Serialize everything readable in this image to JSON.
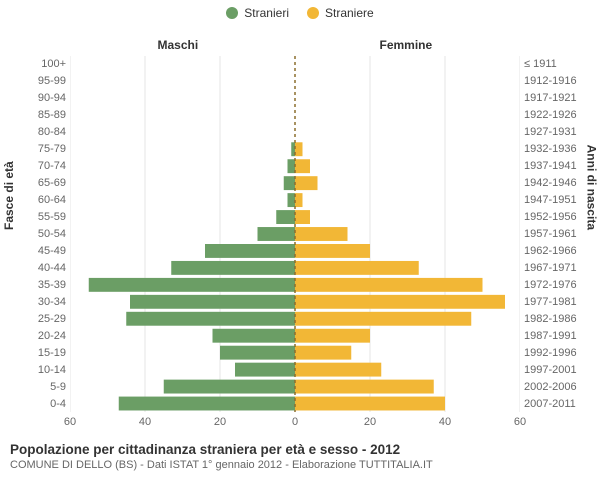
{
  "legend": {
    "male": "Stranieri",
    "female": "Straniere"
  },
  "columns": {
    "male": "Maschi",
    "female": "Femmine"
  },
  "axis_titles": {
    "left": "Fasce di età",
    "right": "Anni di nascita"
  },
  "footer": {
    "title": "Popolazione per cittadinanza straniera per età e sesso - 2012",
    "subtitle": "COMUNE DI DELLO (BS) - Dati ISTAT 1° gennaio 2012 - Elaborazione TUTTITALIA.IT"
  },
  "chart": {
    "type": "population-pyramid",
    "colors": {
      "male": "#6b9e65",
      "female": "#f2b736",
      "grid": "#e6e6e6",
      "center_line": "#8b6f2f",
      "background": "#ffffff",
      "text": "#333333",
      "muted_text": "#666666"
    },
    "x_axis": {
      "max": 60,
      "ticks": [
        60,
        40,
        20,
        0,
        20,
        40,
        60
      ]
    },
    "font_sizes": {
      "legend": 12,
      "column_header": 12,
      "axis_title": 12,
      "tick": 11,
      "title": 13.5,
      "subtitle": 11
    },
    "bar_gap_ratio": 0.18,
    "age_bands": [
      {
        "age": "100+",
        "birth": "≤ 1911",
        "m": 0,
        "f": 0
      },
      {
        "age": "95-99",
        "birth": "1912-1916",
        "m": 0,
        "f": 0
      },
      {
        "age": "90-94",
        "birth": "1917-1921",
        "m": 0,
        "f": 0
      },
      {
        "age": "85-89",
        "birth": "1922-1926",
        "m": 0,
        "f": 0
      },
      {
        "age": "80-84",
        "birth": "1927-1931",
        "m": 0,
        "f": 0
      },
      {
        "age": "75-79",
        "birth": "1932-1936",
        "m": 1,
        "f": 2
      },
      {
        "age": "70-74",
        "birth": "1937-1941",
        "m": 2,
        "f": 4
      },
      {
        "age": "65-69",
        "birth": "1942-1946",
        "m": 3,
        "f": 6
      },
      {
        "age": "60-64",
        "birth": "1947-1951",
        "m": 2,
        "f": 2
      },
      {
        "age": "55-59",
        "birth": "1952-1956",
        "m": 5,
        "f": 4
      },
      {
        "age": "50-54",
        "birth": "1957-1961",
        "m": 10,
        "f": 14
      },
      {
        "age": "45-49",
        "birth": "1962-1966",
        "m": 24,
        "f": 20
      },
      {
        "age": "40-44",
        "birth": "1967-1971",
        "m": 33,
        "f": 33
      },
      {
        "age": "35-39",
        "birth": "1972-1976",
        "m": 55,
        "f": 50
      },
      {
        "age": "30-34",
        "birth": "1977-1981",
        "m": 44,
        "f": 56
      },
      {
        "age": "25-29",
        "birth": "1982-1986",
        "m": 45,
        "f": 47
      },
      {
        "age": "20-24",
        "birth": "1987-1991",
        "m": 22,
        "f": 20
      },
      {
        "age": "15-19",
        "birth": "1992-1996",
        "m": 20,
        "f": 15
      },
      {
        "age": "10-14",
        "birth": "1997-2001",
        "m": 16,
        "f": 23
      },
      {
        "age": "5-9",
        "birth": "2002-2006",
        "m": 35,
        "f": 37
      },
      {
        "age": "0-4",
        "birth": "2007-2011",
        "m": 47,
        "f": 40
      }
    ]
  }
}
